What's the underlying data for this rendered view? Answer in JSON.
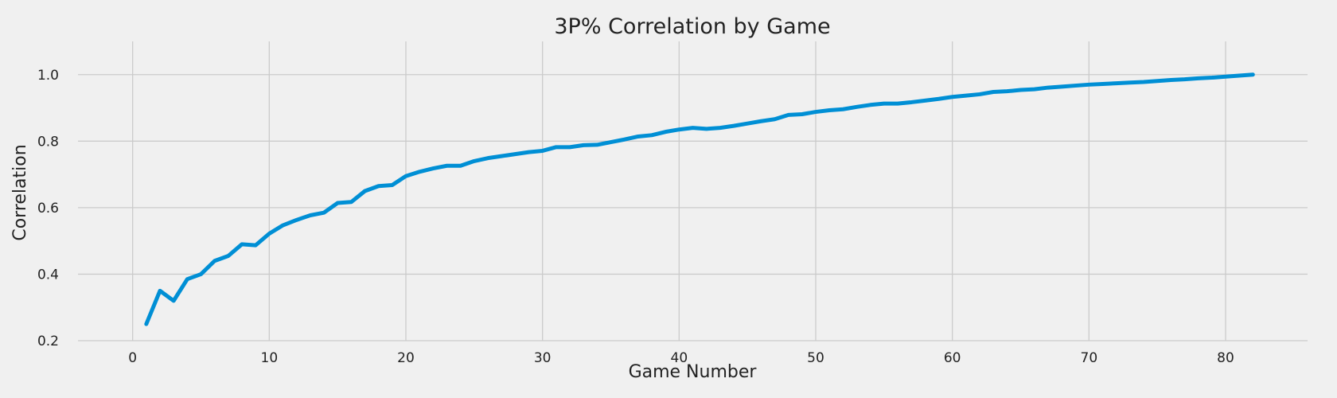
{
  "chart_data": {
    "type": "line",
    "title": "3P% Correlation by Game",
    "xlabel": "Game Number",
    "ylabel": "Correlation",
    "xlim": [
      -4,
      86
    ],
    "ylim": [
      0.2,
      1.1
    ],
    "xticks": [
      0,
      10,
      20,
      30,
      40,
      50,
      60,
      70,
      80
    ],
    "yticks": [
      0.2,
      0.4,
      0.6,
      0.8,
      1.0
    ],
    "xtick_labels": [
      "0",
      "10",
      "20",
      "30",
      "40",
      "50",
      "60",
      "70",
      "80"
    ],
    "ytick_labels": [
      "0.2",
      "0.4",
      "0.6",
      "0.8",
      "1.0"
    ],
    "grid": true,
    "color": "#008fd5",
    "series": [
      {
        "x": [
          1,
          2,
          3,
          4,
          5,
          6,
          7,
          8,
          9,
          10,
          11,
          12,
          13,
          14,
          15,
          16,
          17,
          18,
          19,
          20,
          21,
          22,
          23,
          24,
          25,
          26,
          27,
          28,
          29,
          30,
          31,
          32,
          33,
          34,
          35,
          36,
          37,
          38,
          39,
          40,
          41,
          42,
          43,
          44,
          45,
          46,
          47,
          48,
          49,
          50,
          51,
          52,
          53,
          54,
          55,
          56,
          57,
          58,
          59,
          60,
          61,
          62,
          63,
          64,
          65,
          66,
          67,
          68,
          69,
          70,
          71,
          72,
          73,
          74,
          75,
          76,
          77,
          78,
          79,
          80,
          81,
          82
        ],
        "values": [
          0.25,
          0.35,
          0.32,
          0.385,
          0.4,
          0.44,
          0.455,
          0.49,
          0.487,
          0.522,
          0.547,
          0.563,
          0.577,
          0.585,
          0.614,
          0.617,
          0.65,
          0.665,
          0.668,
          0.695,
          0.708,
          0.718,
          0.726,
          0.726,
          0.74,
          0.749,
          0.755,
          0.761,
          0.767,
          0.771,
          0.782,
          0.782,
          0.788,
          0.789,
          0.797,
          0.805,
          0.814,
          0.818,
          0.828,
          0.835,
          0.84,
          0.837,
          0.84,
          0.846,
          0.853,
          0.86,
          0.866,
          0.879,
          0.881,
          0.888,
          0.893,
          0.896,
          0.903,
          0.909,
          0.913,
          0.913,
          0.917,
          0.922,
          0.927,
          0.933,
          0.937,
          0.941,
          0.948,
          0.95,
          0.954,
          0.956,
          0.961,
          0.964,
          0.967,
          0.97,
          0.972,
          0.974,
          0.976,
          0.978,
          0.981,
          0.984,
          0.986,
          0.989,
          0.991,
          0.994,
          0.997,
          1.0
        ]
      }
    ]
  }
}
